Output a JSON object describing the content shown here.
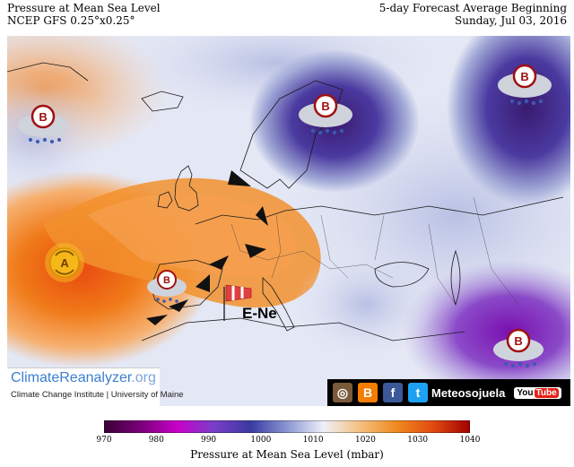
{
  "header": {
    "title": "Pressure at Mean Sea Level",
    "model": "NCEP GFS 0.25°x0.25°",
    "forecast": "5-day Forecast Average Beginning",
    "date": "Sunday, Jul 03, 2016"
  },
  "map": {
    "wind_label": "E-Ne",
    "systems": [
      {
        "type": "low",
        "letter": "B",
        "location": "North Atlantic west of Ireland"
      },
      {
        "type": "low",
        "letter": "B",
        "location": "Scandinavia"
      },
      {
        "type": "low",
        "letter": "B",
        "location": "Northwest Russia"
      },
      {
        "type": "low",
        "letter": "B",
        "location": "Middle East"
      },
      {
        "type": "low",
        "letter": "B",
        "location": "Southern Iberia"
      },
      {
        "type": "high",
        "letter": "A",
        "location": "Azores"
      }
    ]
  },
  "branding": {
    "site_main": "ClimateReanalyzer",
    "site_tld": ".org",
    "institute": "Climate Change Institute | University of Maine",
    "social_name": "Meteosojuela",
    "youtube_you": "You",
    "youtube_tube": "Tube"
  },
  "colorbar": {
    "title": "Pressure at Mean Sea Level (mbar)",
    "ticks": [
      "970",
      "980",
      "990",
      "1000",
      "1010",
      "1020",
      "1030",
      "1040"
    ],
    "min": 970,
    "max": 1040,
    "colors": [
      "#3a0036",
      "#7a007a",
      "#c800c8",
      "#7a3ec8",
      "#3a3aa0",
      "#8a96d4",
      "#eef0f8",
      "#f5c080",
      "#f08a20",
      "#e04a10",
      "#a00000"
    ]
  },
  "colors": {
    "high_pressure": "#f07a18",
    "low_pressure": "#6a4ab8",
    "neutral": "#eef0f8"
  }
}
